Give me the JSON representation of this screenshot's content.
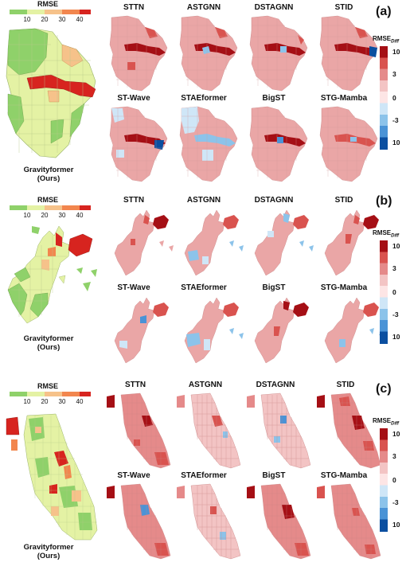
{
  "panels": [
    {
      "id": "a",
      "label": "(a)",
      "rmse_legend": {
        "title": "RMSE",
        "ticks": [
          "10",
          "20",
          "30",
          "40"
        ]
      },
      "main_caption": [
        "Gravityformer",
        "(Ours)"
      ],
      "models": [
        "STTN",
        "ASTGNN",
        "DSTAGNN",
        "STID",
        "ST-Wave",
        "STAEformer",
        "BigST",
        "STG-Mamba"
      ],
      "diff_legend": {
        "title": "RMSE",
        "subscript": "Diff",
        "ticks": [
          "10",
          "3",
          "0",
          "-3",
          "10"
        ]
      }
    },
    {
      "id": "b",
      "label": "(b)",
      "rmse_legend": {
        "title": "RMSE",
        "ticks": [
          "10",
          "20",
          "30",
          "40"
        ]
      },
      "main_caption": [
        "Gravityformer",
        "(Ours)"
      ],
      "models": [
        "STTN",
        "ASTGNN",
        "DSTAGNN",
        "STID",
        "ST-Wave",
        "STAEformer",
        "BigST",
        "STG-Mamba"
      ],
      "diff_legend": {
        "title": "RMSE",
        "subscript": "Diff",
        "ticks": [
          "10",
          "3",
          "0",
          "-3",
          "10"
        ]
      }
    },
    {
      "id": "c",
      "label": "(c)",
      "rmse_legend": {
        "title": "RMSE",
        "ticks": [
          "10",
          "20",
          "30",
          "40"
        ]
      },
      "main_caption": [
        "Gravityformer",
        "(Ours)"
      ],
      "models": [
        "STTN",
        "ASTGNN",
        "DSTAGNN",
        "STID",
        "ST-Wave",
        "STAEformer",
        "BigST",
        "STG-Mamba"
      ],
      "diff_legend": {
        "title": "RMSE",
        "subscript": "Diff",
        "ticks": [
          "10",
          "3",
          "0",
          "-3",
          "10"
        ]
      }
    }
  ],
  "colors": {
    "rmse_scale": [
      "#8fd16a",
      "#e4f2a4",
      "#f6c28a",
      "#f2864e",
      "#d7241f"
    ],
    "diff_scale": [
      "#a50f15",
      "#d9534f",
      "#e58a8a",
      "#f3c4c4",
      "#fde5e5",
      "#cfe6f7",
      "#8cc3ea",
      "#4a93d6",
      "#0b4fa0"
    ]
  }
}
